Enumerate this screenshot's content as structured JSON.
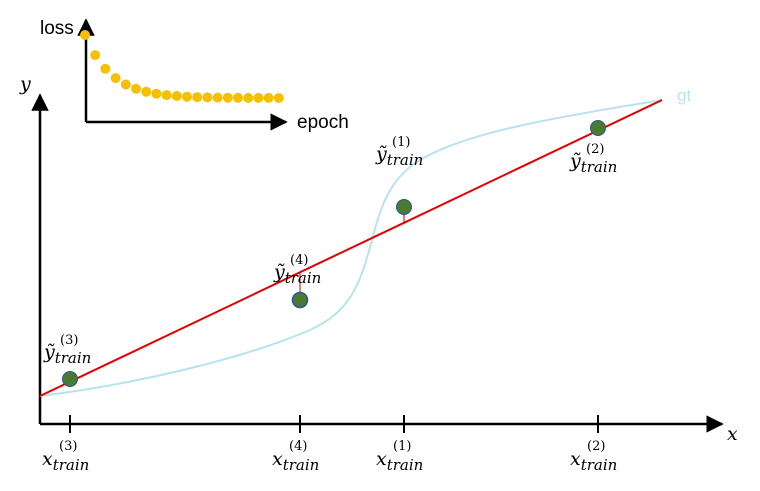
{
  "inset": {
    "y_label": "loss",
    "x_label": "epoch",
    "point_color": "#f5c000"
  },
  "axes": {
    "x_label": "x",
    "y_label": "y",
    "color": "#000000"
  },
  "gt_label": "gt",
  "colors": {
    "fit_line": "#e00000",
    "gt_curve": "#b8e2ef",
    "point_fill": "#4a7a32",
    "point_fill_alt": "#4a7a32",
    "point_edge_alt": "#2f5597",
    "residual": "#c00000"
  },
  "x_ticks": [
    {
      "base": "x",
      "sub": "train",
      "sup": "(3)"
    },
    {
      "base": "x",
      "sub": "train",
      "sup": "(4)"
    },
    {
      "base": "x",
      "sub": "train",
      "sup": "(1)"
    },
    {
      "base": "x",
      "sub": "train",
      "sup": "(2)"
    }
  ],
  "point_labels": [
    {
      "base": "ỹ",
      "sub": "train",
      "sup": "(3)"
    },
    {
      "base": "ỹ",
      "sub": "train",
      "sup": "(4)"
    },
    {
      "base": "ỹ",
      "sub": "train",
      "sup": "(1)"
    },
    {
      "base": "ỹ",
      "sub": "train",
      "sup": "(2)"
    }
  ]
}
